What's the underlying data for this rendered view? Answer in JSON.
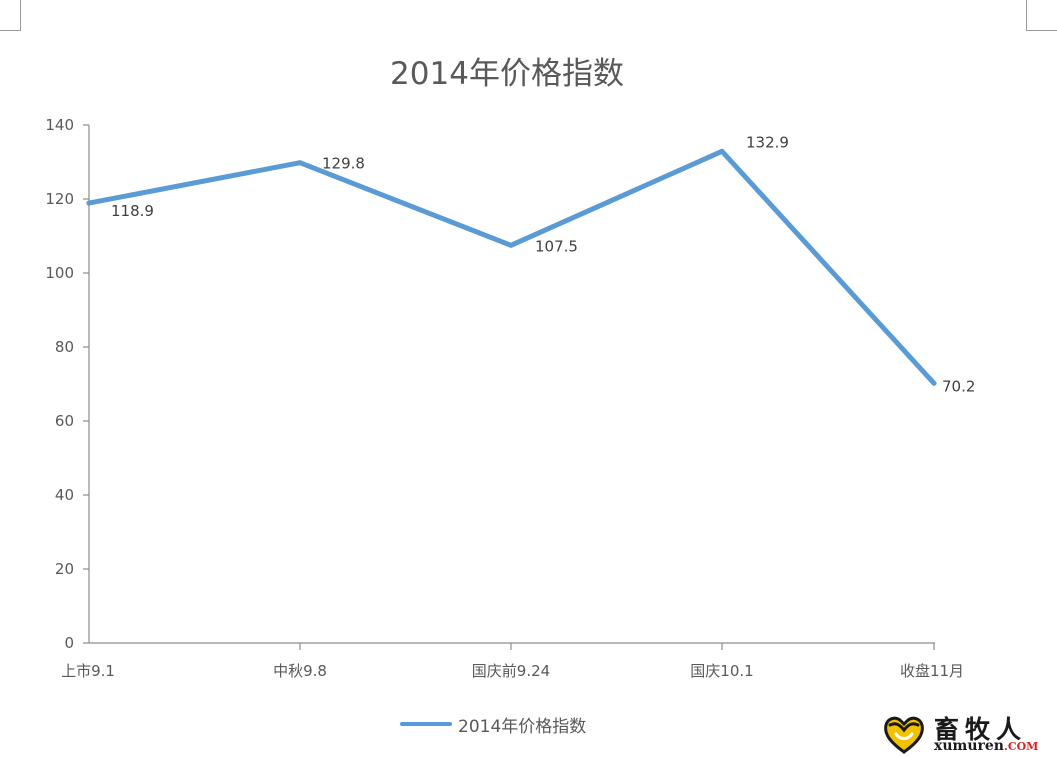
{
  "chart_data": {
    "type": "line",
    "title": "2014年价格指数",
    "categories": [
      "上市9.1",
      "中秋9.8",
      "国庆前9.24",
      "国庆10.1",
      "收盘11月"
    ],
    "series": [
      {
        "name": "2014年价格指数",
        "values": [
          118.9,
          129.8,
          107.5,
          132.9,
          70.2
        ],
        "labels": [
          "118.9",
          "129.8",
          "107.5",
          "132.9",
          "70.2"
        ],
        "color": "#5b9bd5"
      }
    ],
    "ylim": [
      0,
      140
    ],
    "yticks": [
      0,
      20,
      40,
      60,
      80,
      100,
      120,
      140
    ],
    "ytick_labels": [
      "0",
      "20",
      "40",
      "60",
      "80",
      "100",
      "120",
      "140"
    ],
    "xlabel": "",
    "ylabel": "",
    "grid": false,
    "legend_position": "bottom"
  },
  "watermark": {
    "name": "畜牧人",
    "site": "xumuren",
    "tld": ".COM",
    "logo_icon": "heart-leaf-logo-icon"
  }
}
